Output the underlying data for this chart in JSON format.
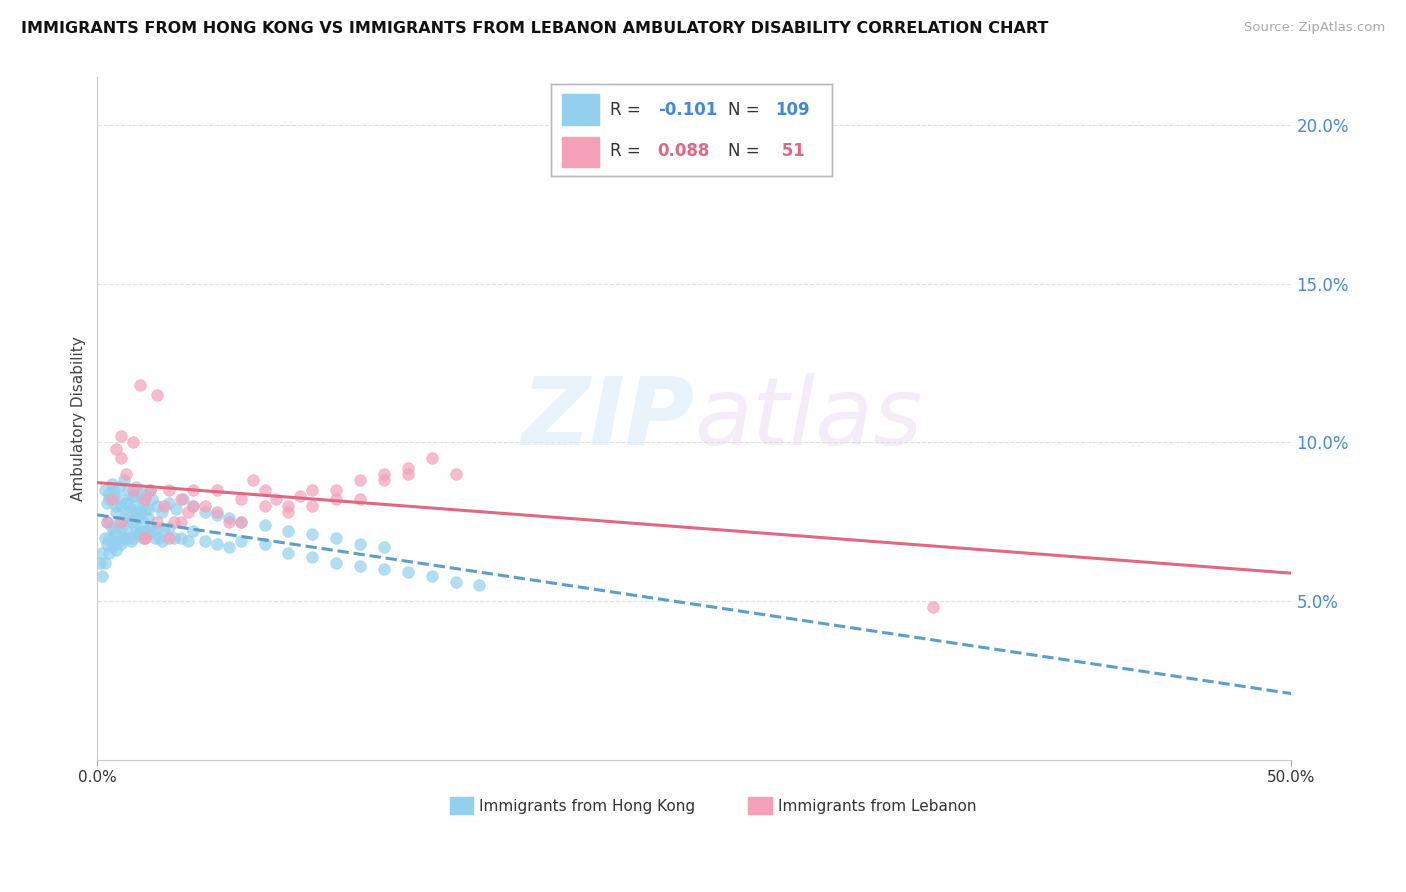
{
  "title": "IMMIGRANTS FROM HONG KONG VS IMMIGRANTS FROM LEBANON AMBULATORY DISABILITY CORRELATION CHART",
  "source": "Source: ZipAtlas.com",
  "ylabel": "Ambulatory Disability",
  "xmin": 0.0,
  "xmax": 50.0,
  "ymin": 0.0,
  "ymax": 21.5,
  "yticks": [
    5.0,
    10.0,
    15.0,
    20.0
  ],
  "ytick_labels": [
    "5.0%",
    "10.0%",
    "15.0%",
    "20.0%"
  ],
  "hk_color": "#92d0ed",
  "lb_color": "#f4a0b8",
  "hk_line_color": "#5a9fc8",
  "lb_line_color": "#e06882",
  "hk_R": -0.101,
  "hk_N": 109,
  "lb_R": 0.088,
  "lb_N": 51,
  "legend_label_hk": "Immigrants from Hong Kong",
  "legend_label_lb": "Immigrants from Lebanon",
  "background_color": "#ffffff",
  "grid_color": "#e0e0e0",
  "hk_x": [
    0.1,
    0.2,
    0.2,
    0.3,
    0.3,
    0.4,
    0.4,
    0.5,
    0.5,
    0.5,
    0.6,
    0.6,
    0.7,
    0.7,
    0.7,
    0.8,
    0.8,
    0.8,
    0.9,
    0.9,
    1.0,
    1.0,
    1.0,
    1.1,
    1.1,
    1.2,
    1.2,
    1.3,
    1.3,
    1.4,
    1.4,
    1.5,
    1.5,
    1.5,
    1.6,
    1.6,
    1.7,
    1.7,
    1.8,
    1.8,
    1.9,
    1.9,
    2.0,
    2.0,
    2.1,
    2.1,
    2.2,
    2.3,
    2.4,
    2.5,
    2.6,
    2.7,
    2.8,
    3.0,
    3.2,
    3.5,
    3.8,
    4.0,
    4.5,
    5.0,
    5.5,
    6.0,
    7.0,
    8.0,
    9.0,
    10.0,
    11.0,
    12.0,
    13.0,
    14.0,
    15.0,
    16.0,
    0.3,
    0.4,
    0.5,
    0.6,
    0.7,
    0.8,
    0.9,
    1.0,
    1.1,
    1.2,
    1.3,
    1.4,
    1.5,
    1.6,
    1.7,
    1.8,
    1.9,
    2.0,
    2.1,
    2.2,
    2.3,
    2.5,
    2.7,
    3.0,
    3.3,
    3.6,
    4.0,
    4.5,
    5.0,
    5.5,
    6.0,
    7.0,
    8.0,
    9.0,
    10.0,
    11.0,
    12.0
  ],
  "hk_y": [
    6.2,
    5.8,
    6.5,
    7.0,
    6.2,
    7.5,
    6.8,
    8.2,
    7.0,
    6.5,
    7.3,
    6.7,
    8.5,
    7.2,
    6.8,
    7.8,
    7.1,
    6.6,
    7.5,
    6.9,
    8.0,
    7.3,
    6.8,
    7.6,
    7.0,
    8.1,
    7.2,
    7.8,
    7.0,
    7.5,
    6.9,
    8.3,
    7.5,
    7.0,
    7.8,
    7.2,
    7.6,
    7.1,
    7.8,
    7.2,
    7.5,
    7.0,
    7.9,
    7.2,
    7.6,
    7.1,
    7.3,
    7.2,
    7.0,
    7.3,
    7.0,
    6.9,
    7.2,
    7.3,
    7.0,
    7.0,
    6.9,
    7.2,
    6.9,
    6.8,
    6.7,
    6.9,
    6.8,
    6.5,
    6.4,
    6.2,
    6.1,
    6.0,
    5.9,
    5.8,
    5.6,
    5.5,
    8.5,
    8.1,
    8.4,
    8.7,
    8.3,
    8.0,
    8.6,
    8.2,
    8.8,
    8.1,
    8.5,
    7.9,
    8.3,
    8.6,
    8.0,
    8.4,
    8.1,
    8.3,
    7.9,
    8.5,
    8.2,
    8.0,
    7.8,
    8.1,
    7.9,
    8.2,
    8.0,
    7.8,
    7.7,
    7.6,
    7.5,
    7.4,
    7.2,
    7.1,
    7.0,
    6.8,
    6.7
  ],
  "lb_x": [
    0.4,
    0.6,
    0.8,
    1.0,
    1.0,
    1.2,
    1.5,
    1.8,
    2.0,
    2.0,
    2.2,
    2.5,
    2.8,
    3.0,
    3.2,
    3.5,
    3.8,
    4.0,
    4.5,
    5.0,
    5.5,
    6.0,
    6.5,
    7.0,
    7.5,
    8.0,
    8.5,
    9.0,
    10.0,
    11.0,
    12.0,
    13.0,
    14.0,
    15.0,
    1.0,
    1.5,
    2.0,
    2.5,
    3.0,
    3.5,
    4.0,
    5.0,
    6.0,
    7.0,
    8.0,
    9.0,
    10.0,
    11.0,
    12.0,
    13.0,
    35.0
  ],
  "lb_y": [
    7.5,
    8.2,
    9.8,
    10.2,
    7.5,
    9.0,
    8.5,
    11.8,
    8.2,
    7.0,
    8.5,
    11.5,
    8.0,
    8.5,
    7.5,
    8.2,
    7.8,
    8.5,
    8.0,
    8.5,
    7.5,
    8.2,
    8.8,
    8.5,
    8.2,
    8.0,
    8.3,
    8.5,
    8.2,
    8.8,
    9.0,
    9.2,
    9.5,
    9.0,
    9.5,
    10.0,
    7.0,
    7.5,
    7.0,
    7.5,
    8.0,
    7.8,
    7.5,
    8.0,
    7.8,
    8.0,
    8.5,
    8.2,
    8.8,
    9.0,
    4.8
  ]
}
